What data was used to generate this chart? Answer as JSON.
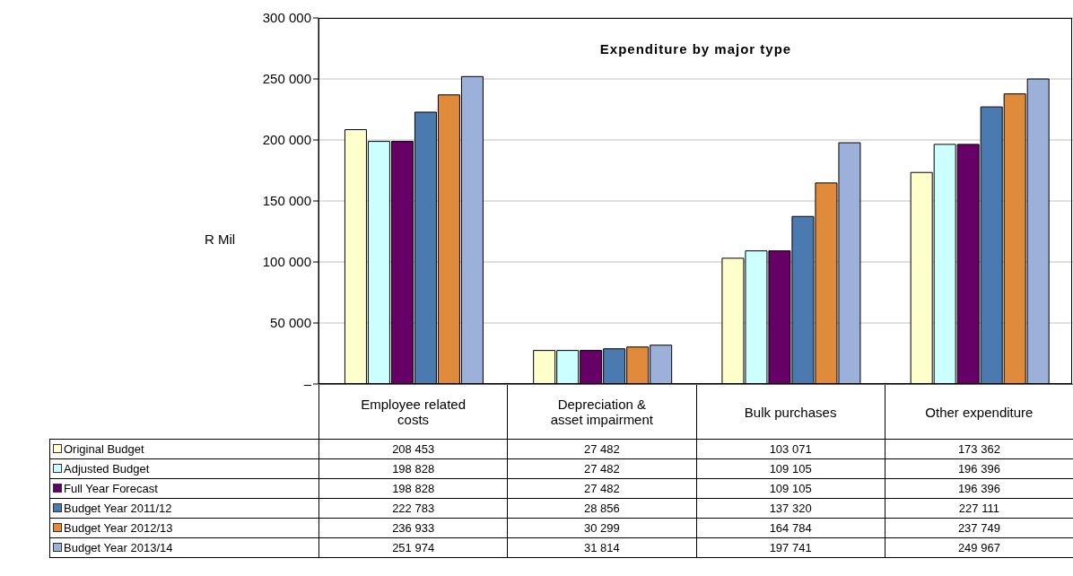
{
  "chart_data": {
    "type": "bar",
    "title": "Expenditure by major type",
    "ylabel": "R Mil",
    "categories": [
      "Employee related costs",
      "Depreciation & asset impairment",
      "Bulk purchases",
      "Other expenditure"
    ],
    "series": [
      {
        "name": "Original Budget",
        "color": "#ffffcc",
        "values": [
          208453,
          27482,
          103071,
          173362
        ]
      },
      {
        "name": "Adjusted Budget",
        "color": "#ccffff",
        "values": [
          198828,
          27482,
          109105,
          196396
        ]
      },
      {
        "name": "Full Year Forecast",
        "color": "#660066",
        "values": [
          198828,
          27482,
          109105,
          196396
        ]
      },
      {
        "name": "Budget Year 2011/12",
        "color": "#4a7ab0",
        "values": [
          222783,
          28856,
          137320,
          227111
        ]
      },
      {
        "name": "Budget Year 2012/13",
        "color": "#e08a3c",
        "values": [
          236933,
          30299,
          164784,
          237749
        ]
      },
      {
        "name": "Budget Year 2013/14",
        "color": "#9bb1d9",
        "values": [
          251974,
          31814,
          197741,
          249967
        ]
      }
    ],
    "ylim": [
      0,
      300000
    ],
    "yticks": [
      {
        "value": 0,
        "label": "–"
      },
      {
        "value": 50000,
        "label": "50 000"
      },
      {
        "value": 100000,
        "label": "100 000"
      },
      {
        "value": 150000,
        "label": "150 000"
      },
      {
        "value": 200000,
        "label": "200 000"
      },
      {
        "value": 250000,
        "label": "250 000"
      },
      {
        "value": 300000,
        "label": "300 000"
      }
    ],
    "grid": "y",
    "legend": "bottom",
    "data_labels": true
  }
}
